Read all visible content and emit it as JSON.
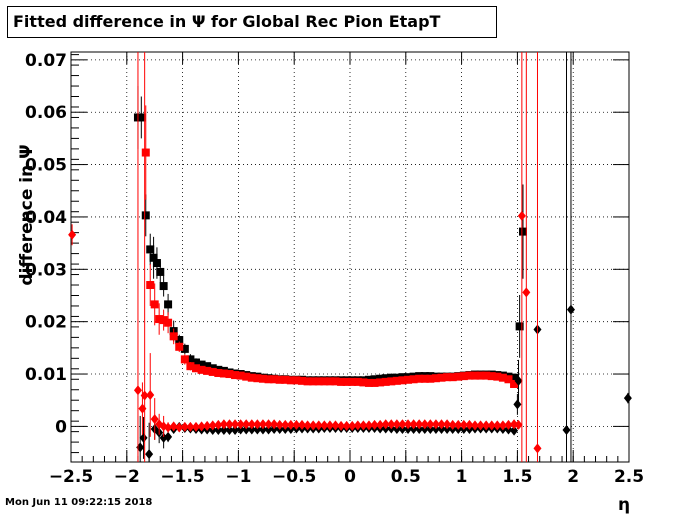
{
  "title": "Fitted difference in  Ψ  for Global Rec Pion EtapT",
  "datestamp": "Mon Jun 11 09:22:15 2018",
  "chart_data": {
    "type": "scatter",
    "title": "Fitted difference in  Ψ  for Global Rec Pion EtapT",
    "xlabel": "η",
    "ylabel": "difference in Ψ",
    "xlim": [
      -2.5,
      2.5
    ],
    "ylim": [
      -0.0068,
      0.0715
    ],
    "xticks": [
      -2.5,
      -2,
      -1.5,
      -1,
      -0.5,
      0,
      0.5,
      1,
      1.5,
      2,
      2.5
    ],
    "yticks": [
      0,
      0.01,
      0.02,
      0.03,
      0.04,
      0.05,
      0.06,
      0.07
    ],
    "xtick_labels": [
      "−2.5",
      "−2",
      "−1.5",
      "−1",
      "−0.5",
      "0",
      "0.5",
      "1",
      "1.5",
      "2",
      "2.5"
    ],
    "ytick_labels": [
      "0",
      "0.01",
      "0.02",
      "0.03",
      "0.04",
      "0.05",
      "0.06",
      "0.07"
    ],
    "grid": true,
    "colors": {
      "black": "#000000",
      "red": "#ff0000"
    },
    "series": [
      {
        "color": "#000000",
        "marker": "square",
        "x": [
          -1.9,
          -1.87,
          -1.83,
          -1.79,
          -1.76,
          -1.73,
          -1.7,
          -1.67,
          -1.63,
          -1.58,
          -1.53,
          -1.48,
          -1.43,
          -1.38,
          -1.33,
          -1.28,
          -1.23,
          -1.18,
          -1.13,
          -1.08,
          -1.03,
          -0.98,
          -0.93,
          -0.88,
          -0.83,
          -0.78,
          -0.73,
          -0.68,
          -0.63,
          -0.58,
          -0.53,
          -0.48,
          -0.43,
          -0.38,
          -0.33,
          -0.28,
          -0.23,
          -0.18,
          -0.13,
          -0.08,
          -0.03,
          0.02,
          0.07,
          0.12,
          0.17,
          0.22,
          0.27,
          0.32,
          0.37,
          0.42,
          0.47,
          0.52,
          0.57,
          0.62,
          0.67,
          0.72,
          0.77,
          0.82,
          0.87,
          0.92,
          0.97,
          1.02,
          1.07,
          1.12,
          1.17,
          1.22,
          1.27,
          1.32,
          1.37,
          1.42,
          1.47,
          1.52,
          1.55
        ],
        "y": [
          0.059,
          0.059,
          0.0403,
          0.0338,
          0.0322,
          0.0312,
          0.0295,
          0.0268,
          0.0233,
          0.0182,
          0.0165,
          0.0148,
          0.0128,
          0.0122,
          0.0118,
          0.0115,
          0.0111,
          0.0108,
          0.0106,
          0.0103,
          0.0101,
          0.01,
          0.0098,
          0.0096,
          0.0095,
          0.0093,
          0.0092,
          0.0091,
          0.009,
          0.009,
          0.0089,
          0.0089,
          0.0089,
          0.0088,
          0.0088,
          0.0088,
          0.0088,
          0.0088,
          0.0088,
          0.0088,
          0.0088,
          0.0088,
          0.0088,
          0.0088,
          0.0089,
          0.009,
          0.0091,
          0.0092,
          0.0093,
          0.0093,
          0.0094,
          0.0094,
          0.0095,
          0.0096,
          0.0096,
          0.0096,
          0.0095,
          0.0095,
          0.0095,
          0.0095,
          0.0096,
          0.0097,
          0.0098,
          0.0099,
          0.0099,
          0.0099,
          0.0099,
          0.0098,
          0.0097,
          0.0095,
          0.0093,
          0.0191,
          0.0372
        ],
        "err": [
          0.006,
          0.004,
          0.004,
          0.003,
          0.004,
          0.003,
          0.002,
          0.002,
          0.002,
          0.002,
          0.001,
          0.001,
          0.001,
          0.0008,
          0.0006,
          0.0005,
          0.0005,
          0.0004,
          0.0004,
          0.0004,
          0.0004,
          0.0004,
          0.0004,
          0.0004,
          0.0004,
          0.0004,
          0.0004,
          0.0004,
          0.0004,
          0.0004,
          0.0004,
          0.0004,
          0.0004,
          0.0004,
          0.0004,
          0.0004,
          0.0004,
          0.0004,
          0.0004,
          0.0004,
          0.0004,
          0.0004,
          0.0004,
          0.0004,
          0.0004,
          0.0004,
          0.0004,
          0.0004,
          0.0004,
          0.0004,
          0.0004,
          0.0004,
          0.0004,
          0.0004,
          0.0004,
          0.0004,
          0.0004,
          0.0004,
          0.0004,
          0.0004,
          0.0004,
          0.0004,
          0.0004,
          0.0004,
          0.0004,
          0.0004,
          0.0004,
          0.0004,
          0.0005,
          0.0006,
          0.0008,
          0.006,
          0.009
        ]
      },
      {
        "color": "#ff0000",
        "marker": "square",
        "x": [
          -1.83,
          -1.79,
          -1.75,
          -1.71,
          -1.67,
          -1.63,
          -1.58,
          -1.53,
          -1.48,
          -1.43,
          -1.38,
          -1.33,
          -1.28,
          -1.23,
          -1.18,
          -1.13,
          -1.08,
          -1.03,
          -0.98,
          -0.93,
          -0.88,
          -0.83,
          -0.78,
          -0.73,
          -0.68,
          -0.63,
          -0.58,
          -0.53,
          -0.48,
          -0.43,
          -0.38,
          -0.33,
          -0.28,
          -0.23,
          -0.18,
          -0.13,
          -0.08,
          -0.03,
          0.02,
          0.07,
          0.12,
          0.17,
          0.22,
          0.27,
          0.32,
          0.37,
          0.42,
          0.47,
          0.52,
          0.57,
          0.62,
          0.67,
          0.72,
          0.77,
          0.82,
          0.87,
          0.92,
          0.97,
          1.02,
          1.07,
          1.12,
          1.17,
          1.22,
          1.27,
          1.32,
          1.37,
          1.42,
          1.47
        ],
        "y": [
          0.0523,
          0.027,
          0.0233,
          0.0205,
          0.0203,
          0.0198,
          0.0172,
          0.0152,
          0.0128,
          0.0115,
          0.0111,
          0.0108,
          0.0106,
          0.0104,
          0.0102,
          0.0101,
          0.01,
          0.0098,
          0.0097,
          0.0095,
          0.0093,
          0.0092,
          0.0091,
          0.009,
          0.009,
          0.0089,
          0.0089,
          0.0088,
          0.0088,
          0.0087,
          0.0086,
          0.0086,
          0.0086,
          0.0086,
          0.0086,
          0.0086,
          0.0085,
          0.0085,
          0.0085,
          0.0085,
          0.0084,
          0.0083,
          0.0083,
          0.0084,
          0.0085,
          0.0086,
          0.0087,
          0.0088,
          0.0089,
          0.009,
          0.0091,
          0.0091,
          0.0091,
          0.0092,
          0.0093,
          0.0094,
          0.0094,
          0.0095,
          0.0096,
          0.0097,
          0.0097,
          0.0097,
          0.0097,
          0.0096,
          0.0095,
          0.0093,
          0.009,
          0.0081
        ],
        "err": [
          0.009,
          0.004,
          0.004,
          0.003,
          0.002,
          0.002,
          0.0015,
          0.001,
          0.001,
          0.0008,
          0.0006,
          0.0005,
          0.0005,
          0.0004,
          0.0004,
          0.0004,
          0.0004,
          0.0004,
          0.0004,
          0.0004,
          0.0004,
          0.0004,
          0.0004,
          0.0004,
          0.0004,
          0.0004,
          0.0004,
          0.0004,
          0.0004,
          0.0004,
          0.0004,
          0.0004,
          0.0004,
          0.0004,
          0.0004,
          0.0004,
          0.0004,
          0.0004,
          0.0004,
          0.0004,
          0.0004,
          0.0004,
          0.0004,
          0.0004,
          0.0004,
          0.0004,
          0.0004,
          0.0004,
          0.0004,
          0.0004,
          0.0004,
          0.0004,
          0.0004,
          0.0004,
          0.0004,
          0.0004,
          0.0004,
          0.0004,
          0.0004,
          0.0004,
          0.0004,
          0.0004,
          0.0004,
          0.0004,
          0.0004,
          0.0004,
          0.0005,
          0.0006
        ]
      },
      {
        "color": "#000000",
        "marker": "diamond",
        "x": [
          -1.88,
          -1.85,
          -1.8,
          -1.75,
          -1.71,
          -1.67,
          -1.63,
          -1.58,
          -1.53,
          -1.48,
          -1.43,
          -1.38,
          -1.33,
          -1.28,
          -1.23,
          -1.18,
          -1.13,
          -1.08,
          -1.03,
          -0.98,
          -0.93,
          -0.88,
          -0.83,
          -0.78,
          -0.73,
          -0.68,
          -0.63,
          -0.58,
          -0.53,
          -0.48,
          -0.43,
          -0.38,
          -0.33,
          -0.28,
          -0.23,
          -0.18,
          -0.13,
          -0.08,
          -0.03,
          0.02,
          0.07,
          0.12,
          0.17,
          0.22,
          0.27,
          0.32,
          0.37,
          0.42,
          0.47,
          0.52,
          0.57,
          0.62,
          0.67,
          0.72,
          0.77,
          0.82,
          0.87,
          0.92,
          0.97,
          1.02,
          1.07,
          1.12,
          1.17,
          1.22,
          1.27,
          1.32,
          1.37,
          1.42,
          1.47,
          1.5,
          1.51,
          1.68,
          1.94,
          1.98,
          2.49
        ],
        "y": [
          -0.004,
          -0.0022,
          -0.0053,
          -0.0005,
          -0.0012,
          -0.0022,
          -0.002,
          -0.0005,
          -0.0001,
          -0.0003,
          -0.0004,
          -0.0005,
          -0.0006,
          -0.0006,
          -0.0007,
          -0.0007,
          -0.0007,
          -0.0007,
          -0.0007,
          -0.0006,
          -0.0006,
          -0.0006,
          -0.0006,
          -0.0006,
          -0.0006,
          -0.0005,
          -0.0005,
          -0.0005,
          -0.0005,
          -0.0004,
          -0.0004,
          -0.0004,
          -0.0004,
          -0.0004,
          -0.0003,
          -0.0003,
          -0.0003,
          -0.0003,
          -0.0003,
          -0.0003,
          -0.0003,
          -0.0003,
          -0.0003,
          -0.0003,
          -0.0004,
          -0.0004,
          -0.0004,
          -0.0005,
          -0.0005,
          -0.0005,
          -0.0005,
          -0.0005,
          -0.0005,
          -0.0005,
          -0.0005,
          -0.0005,
          -0.0005,
          -0.0005,
          -0.0005,
          -0.0005,
          -0.0005,
          -0.0004,
          -0.0004,
          -0.0004,
          -0.0004,
          -0.0004,
          -0.0005,
          -0.0006,
          -0.0008,
          0.0042,
          0.0087,
          0.0185,
          -0.0007,
          0.0223,
          0.0054
        ],
        "err": [
          0.006,
          0.004,
          0.006,
          0.002,
          0.002,
          0.002,
          0.001,
          0.0008,
          0.0006,
          0.0005,
          0.0004,
          0.0004,
          0.0004,
          0.0003,
          0.0003,
          0.0003,
          0.0003,
          0.0003,
          0.0003,
          0.0003,
          0.0003,
          0.0003,
          0.0003,
          0.0003,
          0.0003,
          0.0003,
          0.0003,
          0.0003,
          0.0003,
          0.0003,
          0.0003,
          0.0003,
          0.0003,
          0.0003,
          0.0003,
          0.0003,
          0.0003,
          0.0003,
          0.0003,
          0.0003,
          0.0003,
          0.0003,
          0.0003,
          0.0003,
          0.0003,
          0.0003,
          0.0003,
          0.0003,
          0.0003,
          0.0003,
          0.0003,
          0.0003,
          0.0003,
          0.0003,
          0.0003,
          0.0003,
          0.0003,
          0.0003,
          0.0003,
          0.0003,
          0.0003,
          0.0003,
          0.0003,
          0.0003,
          0.0003,
          0.0003,
          0.0004,
          0.0005,
          0.0006,
          0.002,
          0.004,
          0.004,
          0.09,
          0.09,
          0.001
        ]
      },
      {
        "color": "#ff0000",
        "marker": "diamond",
        "x": [
          -2.49,
          -1.9,
          -1.86,
          -1.84,
          -1.79,
          -1.75,
          -1.71,
          -1.67,
          -1.63,
          -1.58,
          -1.53,
          -1.48,
          -1.43,
          -1.38,
          -1.33,
          -1.28,
          -1.23,
          -1.18,
          -1.13,
          -1.08,
          -1.03,
          -0.98,
          -0.93,
          -0.88,
          -0.83,
          -0.78,
          -0.73,
          -0.68,
          -0.63,
          -0.58,
          -0.53,
          -0.48,
          -0.43,
          -0.38,
          -0.33,
          -0.28,
          -0.23,
          -0.18,
          -0.13,
          -0.08,
          -0.03,
          0.02,
          0.07,
          0.12,
          0.17,
          0.22,
          0.27,
          0.32,
          0.37,
          0.42,
          0.47,
          0.52,
          0.57,
          0.62,
          0.67,
          0.72,
          0.77,
          0.82,
          0.87,
          0.92,
          0.97,
          1.02,
          1.07,
          1.12,
          1.17,
          1.22,
          1.27,
          1.32,
          1.37,
          1.42,
          1.47,
          1.51,
          1.54,
          1.58,
          1.68
        ],
        "y": [
          0.0366,
          0.0069,
          0.0034,
          0.0059,
          0.006,
          0.0014,
          0.0004,
          0.0,
          -0.0002,
          0.0,
          -0.0002,
          -0.0001,
          -0.0001,
          -0.0001,
          0.0,
          0.0001,
          0.0002,
          0.0003,
          0.0004,
          0.0004,
          0.0004,
          0.0004,
          0.0004,
          0.0004,
          0.0004,
          0.0004,
          0.0004,
          0.0004,
          0.0003,
          0.0003,
          0.0003,
          0.0003,
          0.0003,
          0.0002,
          0.0002,
          0.0002,
          0.0002,
          0.0002,
          0.0002,
          0.0001,
          0.0001,
          0.0001,
          0.0002,
          0.0002,
          0.0002,
          0.0003,
          0.0003,
          0.0004,
          0.0004,
          0.0004,
          0.0004,
          0.0004,
          0.0004,
          0.0004,
          0.0004,
          0.0004,
          0.0004,
          0.0004,
          0.0004,
          0.0003,
          0.0003,
          0.0003,
          0.0003,
          0.0002,
          0.0002,
          0.0002,
          0.0002,
          0.0002,
          0.0002,
          0.0003,
          0.0004,
          0.0003,
          0.0402,
          0.0256,
          -0.0042
        ],
        "err": [
          0.002,
          0.09,
          0.005,
          0.09,
          0.008,
          0.004,
          0.002,
          0.002,
          0.001,
          0.0008,
          0.0006,
          0.0005,
          0.0004,
          0.0004,
          0.0004,
          0.0003,
          0.0003,
          0.0003,
          0.0003,
          0.0003,
          0.0003,
          0.0003,
          0.0003,
          0.0003,
          0.0003,
          0.0003,
          0.0003,
          0.0003,
          0.0003,
          0.0003,
          0.0003,
          0.0003,
          0.0003,
          0.0003,
          0.0003,
          0.0003,
          0.0003,
          0.0003,
          0.0003,
          0.0003,
          0.0003,
          0.0003,
          0.0003,
          0.0003,
          0.0003,
          0.0003,
          0.0003,
          0.0003,
          0.0003,
          0.0003,
          0.0003,
          0.0003,
          0.0003,
          0.0003,
          0.0003,
          0.0003,
          0.0003,
          0.0003,
          0.0003,
          0.0003,
          0.0003,
          0.0003,
          0.0003,
          0.0003,
          0.0003,
          0.0003,
          0.0003,
          0.0003,
          0.0003,
          0.0003,
          0.0004,
          0.0006,
          0.09,
          0.09,
          0.09
        ]
      }
    ]
  }
}
